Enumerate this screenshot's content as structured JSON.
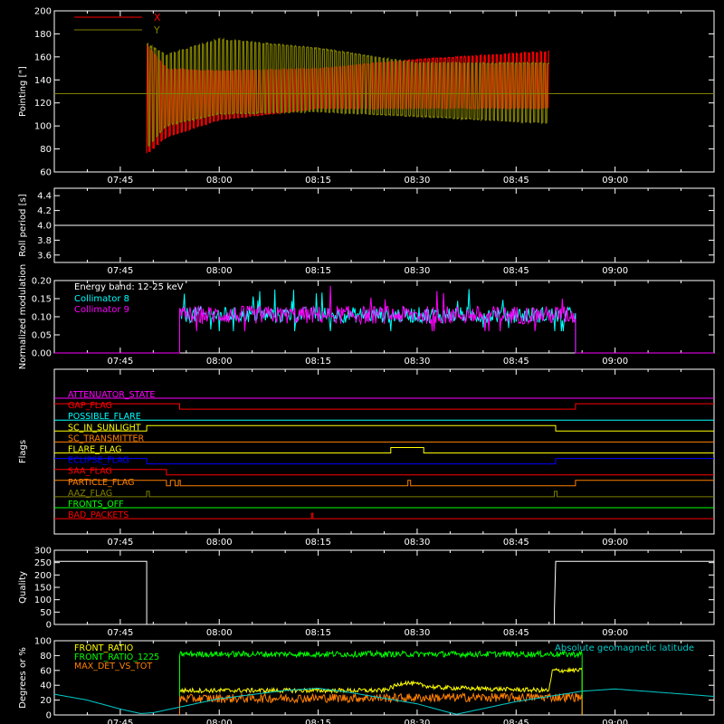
{
  "time_axis": {
    "start_label": "07:35",
    "end_label": "09:15",
    "tick_labels": [
      "07:45",
      "08:00",
      "08:15",
      "08:30",
      "08:45",
      "09:00"
    ]
  },
  "colors": {
    "background": "#000000",
    "axes": "#ffffff",
    "x_pointing": "#ff0000",
    "y_pointing": "#808000",
    "collimator_8": "#00ffff",
    "collimator_9": "#ff00ff",
    "front_ratio": "#ffff00",
    "front_ratio_1225": "#00ff00",
    "max_det": "#ff8000",
    "latitude": "#00cccc"
  },
  "chart_data": [
    {
      "id": "pointing",
      "type": "line",
      "ylabel": "Pointing [\"]",
      "ylim": [
        60,
        200
      ],
      "yticks": [
        "60",
        "80",
        "100",
        "120",
        "140",
        "160",
        "180",
        "200"
      ],
      "grid": false,
      "legend_position": "top-left",
      "series": [
        {
          "name": "X",
          "color": "#ff0000",
          "baseline": 128,
          "envelope": [
            {
              "t": "07:49",
              "min": 75,
              "max": 172
            },
            {
              "t": "07:52",
              "min": 90,
              "max": 150
            },
            {
              "t": "08:00",
              "min": 105,
              "max": 148
            },
            {
              "t": "08:15",
              "min": 115,
              "max": 150
            },
            {
              "t": "08:30",
              "min": 115,
              "max": 158
            },
            {
              "t": "08:50",
              "min": 115,
              "max": 165
            }
          ]
        },
        {
          "name": "Y",
          "color": "#808000",
          "baseline": 128,
          "envelope": [
            {
              "t": "07:49",
              "min": 80,
              "max": 172
            },
            {
              "t": "07:52",
              "min": 100,
              "max": 162
            },
            {
              "t": "08:00",
              "min": 110,
              "max": 176
            },
            {
              "t": "08:15",
              "min": 112,
              "max": 168
            },
            {
              "t": "08:30",
              "min": 108,
              "max": 155
            },
            {
              "t": "08:50",
              "min": 102,
              "max": 155
            }
          ]
        }
      ]
    },
    {
      "id": "roll",
      "type": "line",
      "ylabel": "Roll period [s]",
      "ylim": [
        3.5,
        4.5
      ],
      "yticks": [
        "3.6",
        "3.8",
        "4.0",
        "4.2",
        "4.4"
      ],
      "series": [
        {
          "name": "",
          "color": "#ffffff",
          "points": [
            [
              "07:35",
              4.0
            ],
            [
              "09:15",
              4.0
            ]
          ]
        }
      ]
    },
    {
      "id": "modulation",
      "type": "line",
      "ylabel": "Normalized modulation",
      "ylim": [
        0,
        0.2
      ],
      "yticks": [
        "0.00",
        "0.05",
        "0.10",
        "0.15",
        "0.20"
      ],
      "annotation": "Energy band: 12-25 keV",
      "series": [
        {
          "name": "Collimator 8",
          "color": "#00ffff",
          "active": [
            "07:54",
            "08:54"
          ],
          "mean": 0.105,
          "spread": 0.022
        },
        {
          "name": "Collimator 9",
          "color": "#ff00ff",
          "active": [
            "07:54",
            "08:54"
          ],
          "mean": 0.105,
          "spread": 0.025
        }
      ]
    },
    {
      "id": "flags",
      "type": "step",
      "ylabel": "Flags",
      "flags": [
        {
          "name": "ATTENUATOR_STATE",
          "color": "#ff00ff",
          "steps": [
            [
              "07:35",
              0
            ]
          ]
        },
        {
          "name": "GAP_FLAG",
          "color": "#ff0000",
          "steps": [
            [
              "07:35",
              1
            ],
            [
              "07:54",
              0
            ],
            [
              "08:54",
              1
            ]
          ]
        },
        {
          "name": "POSSIBLE_FLARE",
          "color": "#00ffff",
          "steps": [
            [
              "07:35",
              0
            ]
          ]
        },
        {
          "name": "SC_IN_SUNLIGHT",
          "color": "#ffff00",
          "steps": [
            [
              "07:35",
              0
            ],
            [
              "07:49",
              1
            ],
            [
              "08:51",
              0
            ]
          ]
        },
        {
          "name": "SC_TRANSMITTER",
          "color": "#ff8000",
          "steps": [
            [
              "07:35",
              0
            ]
          ]
        },
        {
          "name": "FLARE_FLAG",
          "color": "#ffff00",
          "steps": [
            [
              "07:35",
              0
            ],
            [
              "08:26",
              1
            ],
            [
              "08:31",
              0
            ]
          ]
        },
        {
          "name": "ECLIPSE_FLAG",
          "color": "#0000ff",
          "steps": [
            [
              "07:35",
              1
            ],
            [
              "07:49",
              0
            ],
            [
              "08:51",
              1
            ]
          ]
        },
        {
          "name": "SAA_FLAG",
          "color": "#ff0000",
          "steps": [
            [
              "07:35",
              1
            ],
            [
              "07:52",
              0
            ]
          ]
        },
        {
          "name": "PARTICLE_FLAG",
          "color": "#ff8000",
          "steps": [
            [
              "07:35",
              1
            ],
            [
              "07:52",
              0
            ],
            [
              "07:52.6",
              1
            ],
            [
              "07:53.3",
              0
            ],
            [
              "07:53.8",
              1
            ],
            [
              "07:54.1",
              0
            ],
            [
              "08:28.6",
              1
            ],
            [
              "08:29",
              0
            ],
            [
              "08:54",
              1
            ]
          ]
        },
        {
          "name": "AAZ_FLAG",
          "color": "#808000",
          "steps": [
            [
              "07:35",
              0
            ],
            [
              "07:49",
              1
            ],
            [
              "07:49.4",
              0
            ],
            [
              "08:50.8",
              1
            ],
            [
              "08:51.2",
              0
            ]
          ]
        },
        {
          "name": "FRONTS_OFF",
          "color": "#00ff00",
          "steps": [
            [
              "07:35",
              0
            ]
          ]
        },
        {
          "name": "BAD_PACKETS",
          "color": "#ff0000",
          "steps": [
            [
              "07:35",
              0
            ],
            [
              "08:14",
              1
            ],
            [
              "08:14.2",
              0
            ]
          ]
        }
      ]
    },
    {
      "id": "quality",
      "type": "line",
      "ylabel": "Quality",
      "ylim": [
        0,
        300
      ],
      "yticks": [
        "0",
        "50",
        "100",
        "150",
        "200",
        "250",
        "300"
      ],
      "series": [
        {
          "name": "",
          "color": "#ffffff",
          "points": [
            [
              "07:35",
              255
            ],
            [
              "07:49",
              255
            ],
            [
              "07:49",
              0
            ],
            [
              "08:50.8",
              0
            ],
            [
              "08:50.8",
              60
            ],
            [
              "08:51",
              255
            ],
            [
              "09:15",
              255
            ]
          ]
        }
      ]
    },
    {
      "id": "ratios",
      "type": "line",
      "ylabel": "Degrees or %",
      "ylim": [
        0,
        100
      ],
      "yticks": [
        "0",
        "20",
        "40",
        "60",
        "80",
        "100"
      ],
      "legend_position": "top-left",
      "series": [
        {
          "name": "FRONT_RATIO",
          "color": "#ffff00",
          "active": [
            "07:54",
            "08:55"
          ],
          "profile": [
            [
              "07:54",
              33
            ],
            [
              "08:05",
              33
            ],
            [
              "08:25",
              33
            ],
            [
              "08:28",
              44
            ],
            [
              "08:33",
              37
            ],
            [
              "08:50",
              33
            ],
            [
              "08:50.5",
              60
            ],
            [
              "08:55",
              60
            ]
          ],
          "spread": 3
        },
        {
          "name": "FRONT_RATIO_1225",
          "color": "#00ff00",
          "active": [
            "07:54",
            "08:55"
          ],
          "profile": [
            [
              "07:54",
              82
            ],
            [
              "08:55",
              82
            ]
          ],
          "spread": 4
        },
        {
          "name": "MAX_DET_VS_TOT",
          "color": "#ff8000",
          "active": [
            "07:54",
            "08:55"
          ],
          "profile": [
            [
              "07:54",
              22
            ],
            [
              "08:55",
              24
            ]
          ],
          "spread": 6
        },
        {
          "name": "Absolute geomagnetic latitude",
          "color": "#00cccc",
          "points": [
            [
              "07:35",
              28
            ],
            [
              "07:40",
              20
            ],
            [
              "07:45",
              8
            ],
            [
              "07:48",
              2
            ],
            [
              "07:50",
              3
            ],
            [
              "08:00",
              22
            ],
            [
              "08:10",
              33
            ],
            [
              "08:15",
              36
            ],
            [
              "08:20",
              30
            ],
            [
              "08:30",
              15
            ],
            [
              "08:35",
              3
            ],
            [
              "08:36",
              1
            ],
            [
              "08:45",
              18
            ],
            [
              "08:55",
              32
            ],
            [
              "09:00",
              35
            ],
            [
              "09:15",
              25
            ]
          ]
        }
      ]
    }
  ]
}
